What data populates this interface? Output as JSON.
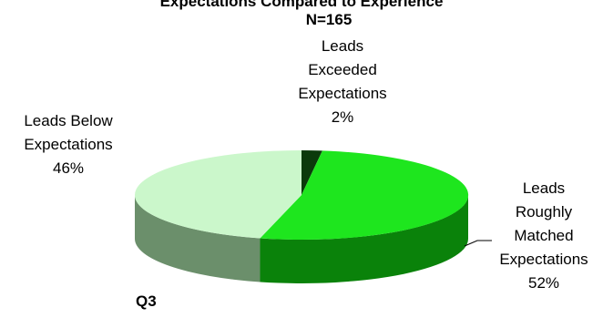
{
  "chart_data": {
    "type": "pie",
    "title": "Expectations Compared to Experience",
    "subtitle": "N=165",
    "footnote": "Q3",
    "slices": [
      {
        "lines": [
          "Leads",
          "Exceeded",
          "Expectations"
        ],
        "percent_label": "2%",
        "value": 2,
        "color": "#0b3a0b",
        "side_color": "#072807"
      },
      {
        "lines": [
          "Leads",
          "Roughly",
          "Matched",
          "Expectations"
        ],
        "percent_label": "52%",
        "value": 52,
        "color": "#1ee61e",
        "side_color": "#0a820a"
      },
      {
        "lines": [
          "Leads Below",
          "Expectations"
        ],
        "percent_label": "46%",
        "value": 46,
        "color": "#cbf7cb",
        "side_color": "#6b8f6b"
      }
    ],
    "legend": "none",
    "style": "3d-pie"
  }
}
